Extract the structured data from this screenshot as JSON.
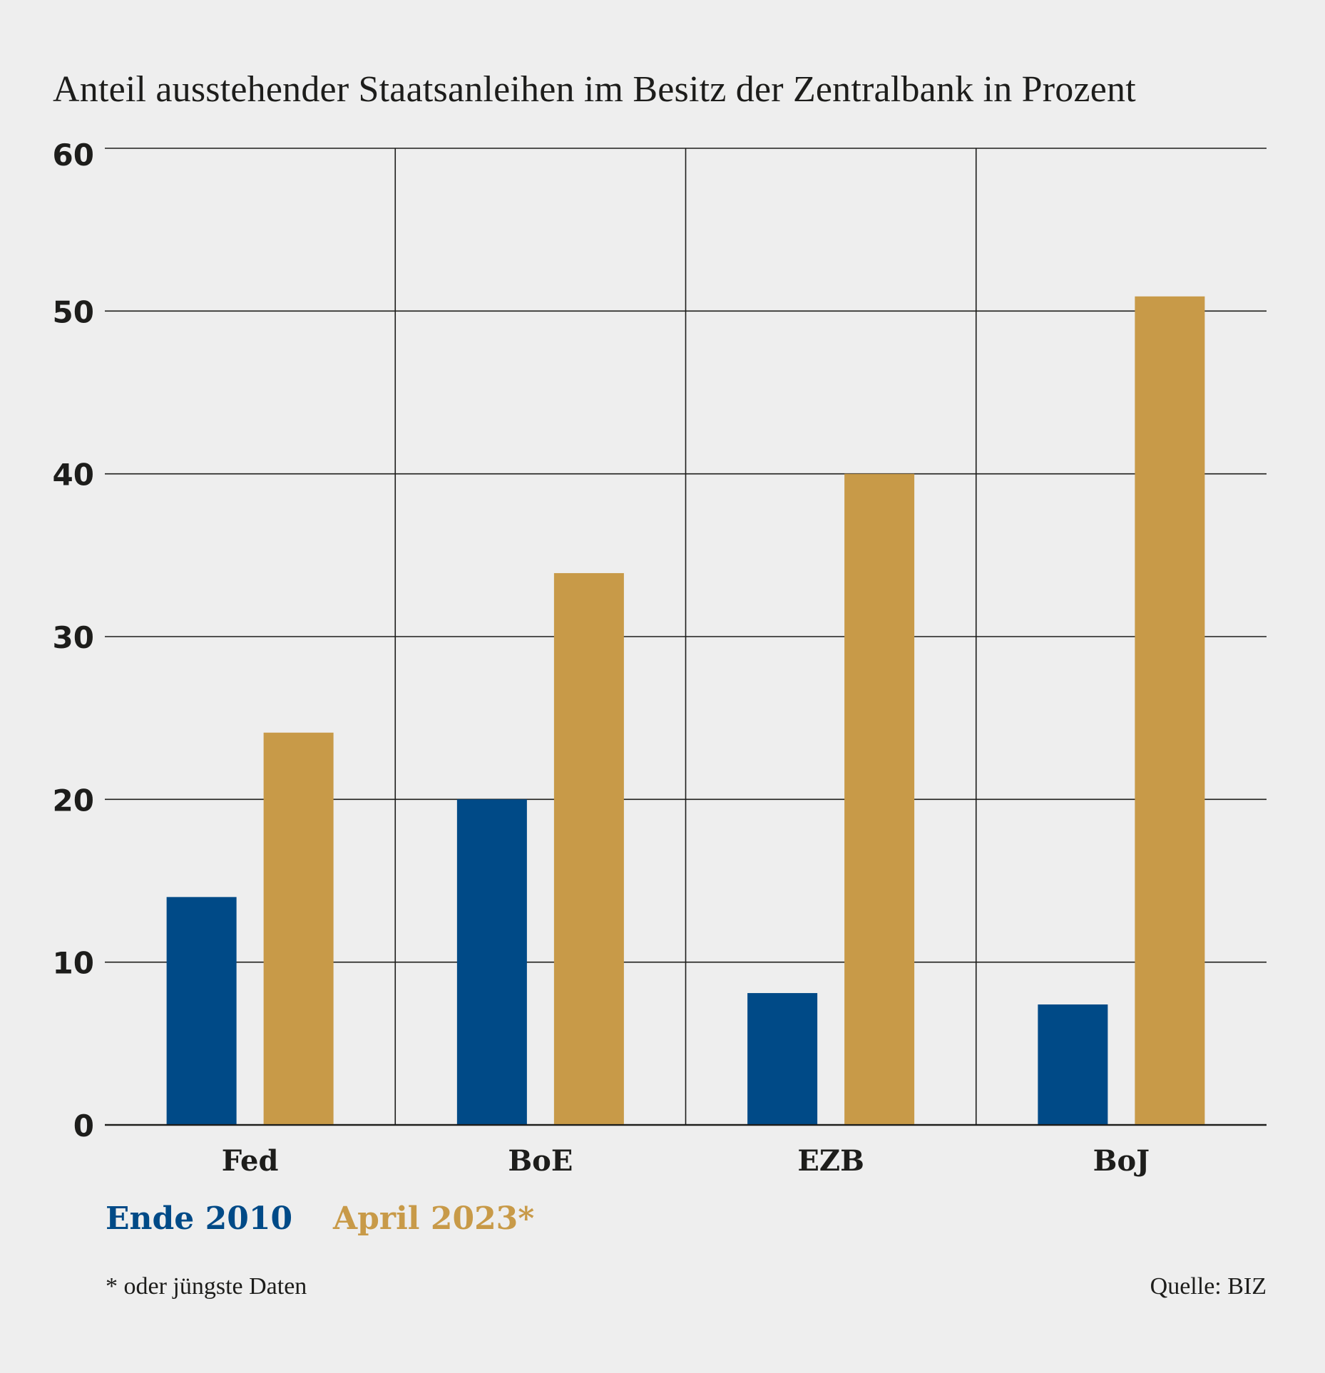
{
  "title": "Anteil ausstehender Staatsanleihen im Besitz der Zentralbank in Prozent",
  "footnote": "* oder jüngste Daten",
  "source": "Quelle: BIZ",
  "colors": {
    "series_2010": "#004a87",
    "series_2023": "#c89a48",
    "gridline": "#1d1d1b",
    "background": "#eeeeee"
  },
  "chart_data": {
    "type": "bar",
    "title": "Anteil ausstehender Staatsanleihen im Besitz der Zentralbank in Prozent",
    "categories": [
      "Fed",
      "BoE",
      "EZB",
      "BoJ"
    ],
    "series": [
      {
        "name": "Ende 2010",
        "values": [
          14,
          20,
          8.1,
          7.4
        ]
      },
      {
        "name": "April 2023*",
        "values": [
          24.1,
          33.9,
          40,
          50.9
        ]
      }
    ],
    "ylim": [
      0,
      60
    ],
    "yticks": [
      "0",
      "10",
      "20",
      "30",
      "40",
      "50",
      "60"
    ],
    "grid": true,
    "legend_position": "bottom-left"
  }
}
